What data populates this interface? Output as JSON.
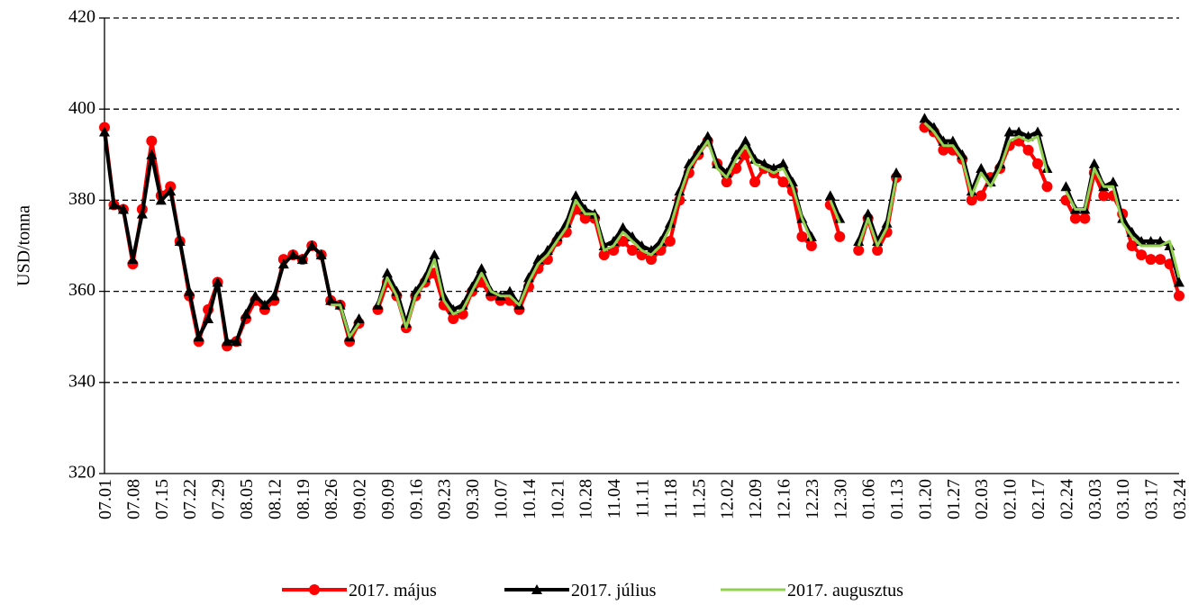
{
  "chart_data": {
    "type": "line",
    "y_label": "USD/tonna",
    "ylim": [
      320,
      420
    ],
    "yticks": [
      320,
      340,
      360,
      380,
      400,
      420
    ],
    "grid": true,
    "legend": "bottom",
    "categories": [
      "07.01",
      null,
      null,
      "07.08",
      null,
      null,
      "07.15",
      null,
      null,
      "07.22",
      null,
      null,
      "07.29",
      null,
      null,
      "08.05",
      null,
      null,
      "08.12",
      null,
      null,
      "08.19",
      null,
      null,
      "08.26",
      null,
      null,
      "09.02",
      null,
      null,
      "09.09",
      null,
      null,
      "09.16",
      null,
      null,
      "09.23",
      null,
      null,
      "09.30",
      null,
      null,
      "10.07",
      null,
      null,
      "10.14",
      null,
      null,
      "10.21",
      null,
      null,
      "10.28",
      null,
      null,
      "11.04",
      null,
      null,
      "11.11",
      null,
      null,
      "11.18",
      null,
      null,
      "11.25",
      null,
      null,
      "12.02",
      null,
      null,
      "12.09",
      null,
      null,
      "12.16",
      null,
      null,
      "12.23",
      null,
      null,
      "12.30",
      null,
      null,
      "01.06",
      null,
      null,
      "01.13",
      null,
      null,
      "01.20",
      null,
      null,
      "01.27",
      null,
      null,
      "02.03",
      null,
      null,
      "02.10",
      null,
      null,
      "02.17",
      null,
      null,
      "02.24",
      null,
      null,
      "03.03",
      null,
      null,
      "03.10",
      null,
      null,
      "03.17",
      null,
      null,
      "03.24"
    ],
    "series": [
      {
        "name": "2017. május",
        "color": "#ff0000",
        "marker": "circle",
        "values": [
          396,
          379,
          378,
          366,
          378,
          393,
          381,
          383,
          371,
          359,
          349,
          356,
          362,
          348,
          349,
          354,
          358,
          356,
          358,
          367,
          368,
          367,
          370,
          368,
          358,
          357,
          349,
          353,
          null,
          356,
          362,
          359,
          352,
          359,
          362,
          364,
          357,
          354,
          355,
          360,
          362,
          359,
          358,
          358,
          356,
          361,
          365,
          367,
          371,
          373,
          378,
          376,
          376,
          368,
          369,
          371,
          369,
          368,
          367,
          369,
          371,
          380,
          386,
          390,
          393,
          388,
          384,
          387,
          390,
          384,
          387,
          386,
          384,
          382,
          372,
          370,
          null,
          379,
          372,
          null,
          369,
          376,
          369,
          373,
          385,
          null,
          null,
          396,
          395,
          391,
          391,
          389,
          380,
          381,
          385,
          387,
          392,
          393,
          391,
          388,
          383,
          null,
          380,
          376,
          376,
          386,
          381,
          381,
          377,
          370,
          368,
          367,
          367,
          366,
          359
        ]
      },
      {
        "name": "2017. július",
        "color": "#000000",
        "marker": "triangle",
        "values": [
          395,
          379,
          378,
          367,
          377,
          390,
          380,
          382,
          371,
          360,
          350,
          354,
          362,
          349,
          349,
          355,
          359,
          357,
          359,
          366,
          368,
          367,
          370,
          368,
          358,
          357,
          350,
          354,
          null,
          357,
          364,
          360,
          353,
          360,
          363,
          368,
          359,
          356,
          357,
          361,
          365,
          360,
          359,
          360,
          357,
          363,
          367,
          369,
          372,
          375,
          381,
          378,
          377,
          370,
          371,
          374,
          372,
          370,
          369,
          371,
          375,
          382,
          388,
          391,
          394,
          388,
          386,
          390,
          393,
          389,
          388,
          387,
          388,
          384,
          376,
          372,
          null,
          381,
          376,
          null,
          371,
          377,
          371,
          375,
          386,
          null,
          null,
          398,
          396,
          393,
          393,
          390,
          382,
          387,
          384,
          388,
          395,
          395,
          394,
          395,
          387,
          null,
          383,
          378,
          378,
          388,
          383,
          384,
          376,
          373,
          371,
          371,
          371,
          370,
          362
        ]
      },
      {
        "name": "2017. augusztus",
        "color": "#92d050",
        "values": [
          null,
          null,
          null,
          null,
          null,
          null,
          null,
          null,
          null,
          null,
          null,
          null,
          null,
          null,
          null,
          null,
          null,
          null,
          null,
          null,
          null,
          null,
          null,
          null,
          357,
          357,
          350,
          353,
          null,
          357,
          363,
          359,
          352,
          359,
          362,
          367,
          358,
          355,
          356,
          360,
          364,
          360,
          359,
          359,
          357,
          362,
          366,
          368,
          371,
          374,
          380,
          377,
          377,
          369,
          370,
          373,
          371,
          369,
          368,
          370,
          374,
          381,
          387,
          390,
          393,
          387,
          385,
          389,
          392,
          388,
          387,
          386,
          387,
          383,
          376,
          371,
          null,
          380,
          375,
          null,
          370,
          376,
          370,
          374,
          385,
          null,
          null,
          397,
          395,
          392,
          392,
          389,
          381,
          386,
          383,
          387,
          393,
          394,
          393,
          394,
          386,
          null,
          382,
          378,
          378,
          387,
          383,
          383,
          375,
          372,
          370,
          370,
          370,
          371,
          363
        ]
      }
    ]
  }
}
